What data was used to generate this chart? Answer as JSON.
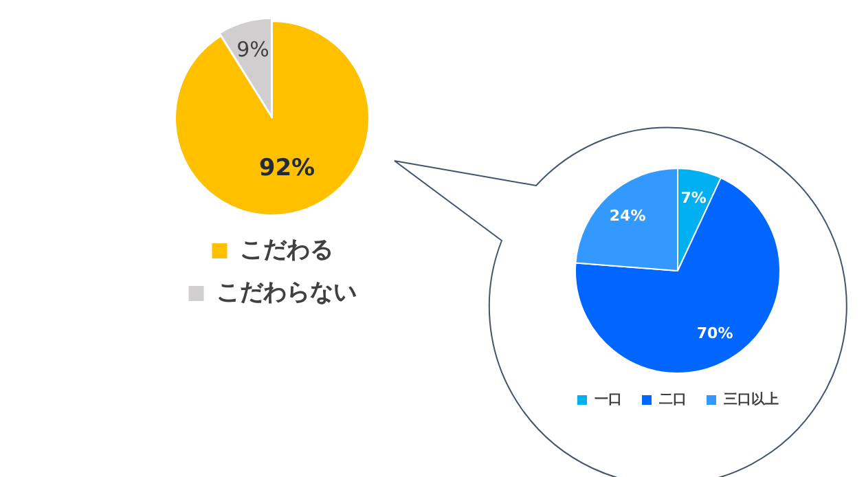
{
  "chart_data": [
    {
      "type": "pie",
      "categories": [
        "こだわる",
        "こだわらない"
      ],
      "values": [
        92,
        9
      ],
      "colors": [
        "#ffc000",
        "#d0cece"
      ],
      "value_labels": [
        "92%",
        "9%"
      ],
      "legend": "bottom"
    },
    {
      "type": "pie",
      "categories": [
        "一口",
        "二口",
        "三口以上"
      ],
      "values": [
        7,
        70,
        24
      ],
      "colors": [
        "#00b0f0",
        "#0066ff",
        "#3399ff"
      ],
      "value_labels": [
        "7%",
        "70%",
        "24%"
      ],
      "legend": "bottom"
    }
  ]
}
